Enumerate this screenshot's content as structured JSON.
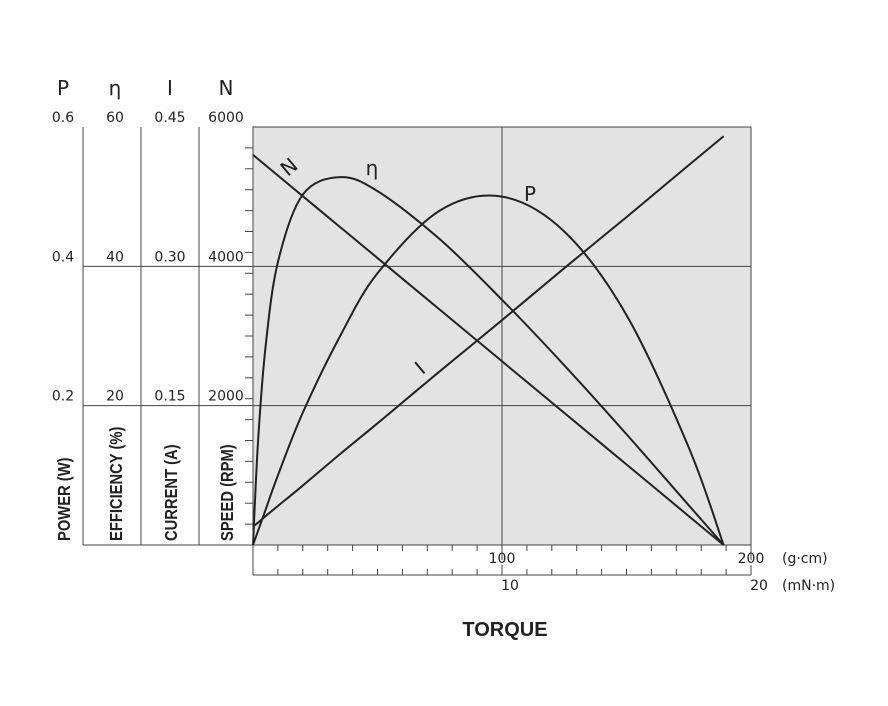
{
  "chart_data": {
    "type": "line",
    "title": "TORQUE",
    "x": [
      0,
      2,
      5,
      10,
      20,
      35,
      50,
      75,
      100,
      125,
      150,
      175,
      189
    ],
    "xlim": [
      0,
      200
    ],
    "xticks": [
      100,
      200
    ],
    "xminor": [
      10,
      20,
      30,
      40,
      50,
      60,
      70,
      80,
      90,
      110,
      120,
      130,
      140,
      150,
      160,
      170,
      180,
      190
    ],
    "x_unit": "(g·cm)",
    "x2lim": [
      0,
      20
    ],
    "x2ticks": [
      10,
      20
    ],
    "x2minor": [
      1,
      2,
      3,
      4,
      5,
      6,
      7,
      8,
      9,
      11,
      12,
      13,
      14,
      15,
      16,
      17,
      18,
      19
    ],
    "x2_unit": "(mN·m)",
    "grid": true,
    "axes": [
      {
        "symbol": "P",
        "label": "POWER (W)",
        "lim": [
          0,
          0.6
        ],
        "ticks": [
          0.2,
          0.4,
          0.6
        ]
      },
      {
        "symbol": "η",
        "label": "EFFICIENCY (%)",
        "lim": [
          0,
          60
        ],
        "ticks": [
          20,
          40,
          60
        ]
      },
      {
        "symbol": "I",
        "label": "CURRENT (A)",
        "lim": [
          0,
          0.45
        ],
        "ticks": [
          0.15,
          {
            "value": 0.3,
            "label": "0.30"
          },
          0.45
        ]
      },
      {
        "symbol": "N",
        "label": "SPEED (RPM)",
        "lim": [
          0,
          6000
        ],
        "ticks": [
          2000,
          4000,
          6000
        ],
        "minor": [
          300,
          600,
          900,
          1200,
          1500,
          1800,
          2100,
          2400,
          2700,
          3000,
          3300,
          3600,
          3900,
          4200,
          4500,
          4800,
          5100,
          5400,
          5700
        ]
      }
    ],
    "series": [
      {
        "name": "P",
        "color": "#222222",
        "values": [
          0,
          0.02,
          0.05,
          0.1,
          0.19,
          0.3,
          0.39,
          0.48,
          0.5,
          0.45,
          0.33,
          0.14,
          0
        ]
      },
      {
        "name": "η",
        "color": "#222222",
        "values": [
          0,
          14.7,
          28.3,
          40.6,
          50.3,
          52.8,
          50.8,
          43.9,
          35.2,
          25.8,
          15.9,
          5.7,
          0
        ]
      },
      {
        "name": "I",
        "color": "#222222",
        "values": [
          0.02,
          0.024,
          0.031,
          0.042,
          0.064,
          0.098,
          0.131,
          0.187,
          0.242,
          0.298,
          0.353,
          0.409,
          0.44
        ]
      },
      {
        "name": "N",
        "color": "#222222",
        "values": [
          5600,
          5541,
          5452,
          5304,
          5007,
          4563,
          4119,
          3378,
          2637,
          1896,
          1156,
          415,
          0
        ]
      }
    ]
  }
}
